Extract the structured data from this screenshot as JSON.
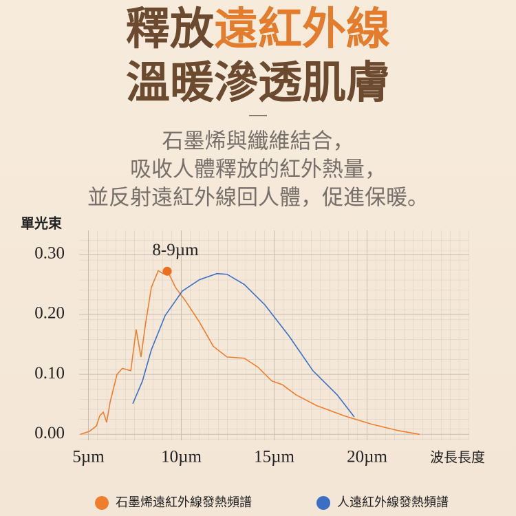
{
  "chart_data": {
    "type": "line",
    "title": [
      {
        "text": "釋放",
        "color": "#6b4a30"
      },
      {
        "text": "遠紅外線",
        "color": "#e47c2e"
      },
      {
        "text": "溫暖滲透肌膚",
        "color": "#6b4a30"
      }
    ],
    "subtitle": [
      "石墨烯與纖維結合，",
      "吸收人體釋放的紅外熱量，",
      "並反射遠紅外線回人體，促進保暖。"
    ],
    "ylabel": "單光束",
    "xlabel": "波長長度",
    "annotation": "8-9µm",
    "xlim": [
      4.5,
      25.5
    ],
    "ylim": [
      -0.01,
      0.34
    ],
    "xticks": [
      {
        "value": 5,
        "label": "5µm"
      },
      {
        "value": 10,
        "label": "10µm"
      },
      {
        "value": 15,
        "label": "15µm"
      },
      {
        "value": 20,
        "label": "20µm"
      }
    ],
    "yticks": [
      {
        "value": 0,
        "label": "0.00"
      },
      {
        "value": 0.1,
        "label": "0.10"
      },
      {
        "value": 0.2,
        "label": "0.20"
      },
      {
        "value": 0.3,
        "label": "0.30"
      }
    ],
    "peak": {
      "x": 9.24,
      "y": 0.272,
      "color": "#ec6f1f"
    },
    "series": [
      {
        "name": "石墨烯遠紅外線發熱頻譜",
        "color": "#ef7d2e",
        "x": [
          4.57,
          5.06,
          5.43,
          5.61,
          5.8,
          5.98,
          6.17,
          6.54,
          6.83,
          7.28,
          7.57,
          7.83,
          8.09,
          8.39,
          8.76,
          9.02,
          9.28,
          9.69,
          10.24,
          10.98,
          11.72,
          12.46,
          13.39,
          14.13,
          14.87,
          15.43,
          16.17,
          17.28,
          18.76,
          20.24,
          21.72,
          22.83
        ],
        "values": [
          0,
          0.005,
          0.014,
          0.031,
          0.037,
          0.02,
          0.054,
          0.1,
          0.11,
          0.106,
          0.175,
          0.129,
          0.187,
          0.245,
          0.273,
          0.268,
          0.271,
          0.245,
          0.222,
          0.187,
          0.147,
          0.129,
          0.127,
          0.112,
          0.089,
          0.083,
          0.066,
          0.048,
          0.031,
          0.017,
          0.006,
          0
        ]
      },
      {
        "name": "人遠紅外線發熱頻譜",
        "color": "#3a6fc4",
        "x": [
          7.39,
          7.91,
          8.39,
          9.13,
          10.06,
          10.98,
          11.91,
          12.46,
          13.39,
          14.5,
          15.8,
          17.09,
          18.39,
          19.31
        ],
        "values": [
          0.051,
          0.089,
          0.141,
          0.198,
          0.239,
          0.258,
          0.268,
          0.267,
          0.25,
          0.216,
          0.164,
          0.106,
          0.066,
          0.029
        ]
      }
    ]
  }
}
